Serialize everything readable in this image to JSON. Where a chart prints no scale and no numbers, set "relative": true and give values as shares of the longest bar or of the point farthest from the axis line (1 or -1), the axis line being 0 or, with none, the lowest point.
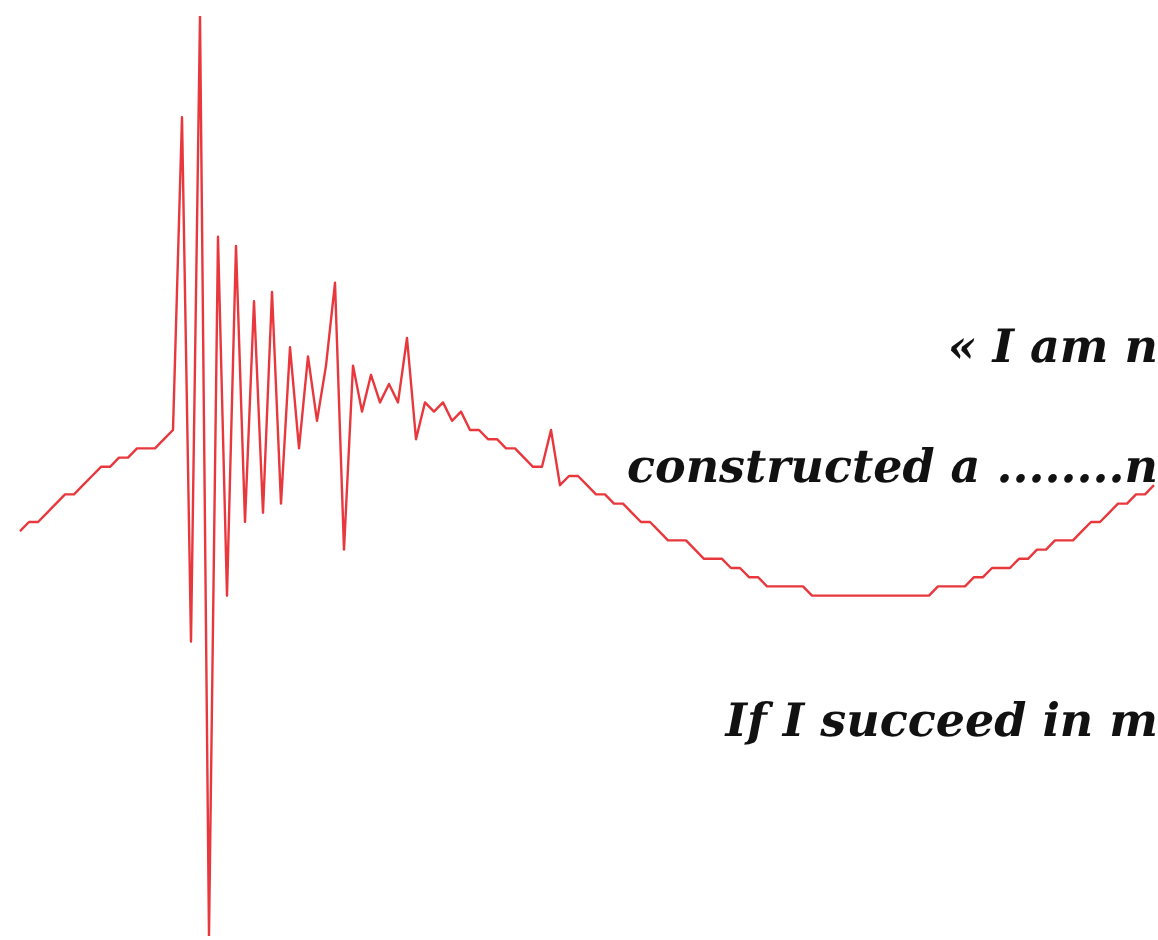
{
  "chart_data": {
    "type": "line",
    "relative": true,
    "grid": false,
    "legend": false,
    "marker": "none",
    "line_style": "solid",
    "annotations": [
      "« I am n",
      "constructed a ........n",
      "If I succeed in m"
    ],
    "categories": [
      null,
      null,
      null,
      null,
      null,
      null,
      null,
      null,
      null,
      null,
      null,
      null,
      null,
      null,
      null,
      null,
      null,
      null,
      null,
      null,
      null,
      null,
      null,
      null,
      null,
      null,
      null,
      null,
      null,
      null,
      null,
      null,
      null,
      null,
      null,
      null,
      null,
      null,
      null,
      null,
      null,
      null,
      null,
      null,
      null,
      null,
      null,
      null,
      null,
      null,
      null,
      null,
      null,
      null,
      null,
      null,
      null,
      null,
      null,
      null,
      null,
      null,
      null,
      null,
      null,
      null,
      null,
      null,
      null,
      null,
      null,
      null,
      null,
      null,
      null,
      null,
      null,
      null,
      null,
      null,
      null,
      null,
      null,
      null,
      null,
      null,
      null,
      null,
      null,
      null,
      null,
      null,
      null,
      null,
      null,
      null,
      null,
      null,
      null,
      null,
      null,
      null,
      null,
      null,
      null,
      null,
      null,
      null,
      null,
      null,
      null,
      null,
      null,
      null,
      null,
      null,
      null,
      null,
      null,
      null,
      null,
      null,
      null,
      null,
      null,
      null,
      null
    ],
    "series": [
      {
        "color": "#e8383d",
        "values": [
          0.44,
          0.45,
          0.45,
          0.46,
          0.47,
          0.48,
          0.48,
          0.49,
          0.5,
          0.51,
          0.51,
          0.52,
          0.52,
          0.53,
          0.53,
          0.53,
          0.54,
          0.55,
          0.89,
          0.32,
          1,
          0,
          0.76,
          0.37,
          0.75,
          0.45,
          0.69,
          0.46,
          0.7,
          0.47,
          0.64,
          0.53,
          0.63,
          0.56,
          0.62,
          0.71,
          0.42,
          0.62,
          0.57,
          0.61,
          0.58,
          0.6,
          0.58,
          0.65,
          0.54,
          0.58,
          0.57,
          0.58,
          0.56,
          0.57,
          0.55,
          0.55,
          0.54,
          0.54,
          0.53,
          0.53,
          0.52,
          0.51,
          0.51,
          0.55,
          0.49,
          0.5,
          0.5,
          0.49,
          0.48,
          0.48,
          0.47,
          0.47,
          0.46,
          0.45,
          0.45,
          0.44,
          0.43,
          0.43,
          0.43,
          0.42,
          0.41,
          0.41,
          0.41,
          0.4,
          0.4,
          0.39,
          0.39,
          0.38,
          0.38,
          0.38,
          0.38,
          0.38,
          0.37,
          0.37,
          0.37,
          0.37,
          0.37,
          0.37,
          0.37,
          0.37,
          0.37,
          0.37,
          0.37,
          0.37,
          0.37,
          0.37,
          0.38,
          0.38,
          0.38,
          0.38,
          0.39,
          0.39,
          0.4,
          0.4,
          0.4,
          0.41,
          0.41,
          0.42,
          0.42,
          0.43,
          0.43,
          0.43,
          0.44,
          0.45,
          0.45,
          0.46,
          0.47,
          0.47,
          0.48,
          0.48,
          0.49
        ]
      }
    ]
  }
}
